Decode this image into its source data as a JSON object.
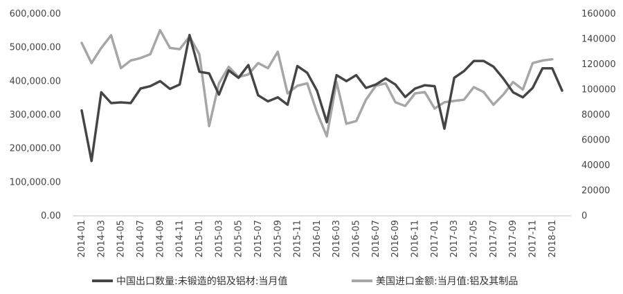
{
  "chart_data": {
    "type": "line",
    "x": [
      "2014-01",
      "2014-02",
      "2014-03",
      "2014-04",
      "2014-05",
      "2014-06",
      "2014-07",
      "2014-08",
      "2014-09",
      "2014-10",
      "2014-11",
      "2014-12",
      "2015-01",
      "2015-02",
      "2015-03",
      "2015-04",
      "2015-05",
      "2015-06",
      "2015-07",
      "2015-08",
      "2015-09",
      "2015-10",
      "2015-11",
      "2015-12",
      "2016-01",
      "2016-02",
      "2016-03",
      "2016-04",
      "2016-05",
      "2016-06",
      "2016-07",
      "2016-08",
      "2016-09",
      "2016-10",
      "2016-11",
      "2016-12",
      "2017-01",
      "2017-02",
      "2017-03",
      "2017-04",
      "2017-05",
      "2017-06",
      "2017-07",
      "2017-08",
      "2017-09",
      "2017-10",
      "2017-11",
      "2017-12",
      "2018-01",
      "2018-02"
    ],
    "x_tick_labels": [
      "2014-01",
      "2014-03",
      "2014-05",
      "2014-07",
      "2014-09",
      "2014-11",
      "2015-01",
      "2015-03",
      "2015-05",
      "2015-07",
      "2015-09",
      "2015-11",
      "2016-01",
      "2016-03",
      "2016-05",
      "2016-07",
      "2016-09",
      "2016-11",
      "2017-01",
      "2017-03",
      "2017-05",
      "2017-07",
      "2017-09",
      "2017-11",
      "2018-01"
    ],
    "y_left_ticks": [
      "0.00",
      "100,000.00",
      "200,000.00",
      "300,000.00",
      "400,000.00",
      "500,000.00",
      "600,000.00"
    ],
    "y_right_ticks": [
      "0",
      "20000",
      "40000",
      "60000",
      "80000",
      "100000",
      "120000",
      "140000",
      "160000"
    ],
    "ylim_left": [
      0,
      600000
    ],
    "ylim_right": [
      0,
      160000
    ],
    "grid": false,
    "legend_position": "bottom",
    "series": [
      {
        "name": "中国出口数量:未锻造的铝及铝材:当月值",
        "axis": "left",
        "color": "#454545",
        "values": [
          313000,
          163000,
          367000,
          335000,
          337000,
          335000,
          378000,
          385000,
          400000,
          377000,
          390000,
          537000,
          428000,
          423000,
          360000,
          432000,
          410000,
          448000,
          358000,
          340000,
          352000,
          330000,
          445000,
          425000,
          372000,
          278000,
          418000,
          400000,
          418000,
          380000,
          390000,
          408000,
          390000,
          353000,
          378000,
          388000,
          385000,
          259000,
          410000,
          430000,
          460000,
          460000,
          443000,
          408000,
          367000,
          352000,
          380000,
          438000,
          438000,
          372000
        ]
      },
      {
        "name": "美国进口金额:当月值:铝及其制品",
        "axis": "right",
        "color": "#a6a6a6",
        "values": [
          137000,
          121000,
          133000,
          143000,
          117000,
          123000,
          125000,
          128000,
          147000,
          133000,
          132000,
          142000,
          128000,
          71000,
          105000,
          118000,
          110000,
          112000,
          121000,
          117000,
          130000,
          97000,
          103000,
          105000,
          82000,
          63000,
          106000,
          73000,
          75000,
          92000,
          103000,
          105000,
          90000,
          87000,
          97000,
          98000,
          85000,
          90000,
          91000,
          92000,
          102000,
          98000,
          88000,
          96000,
          106000,
          100000,
          121000,
          123000,
          124000,
          null
        ]
      }
    ]
  }
}
